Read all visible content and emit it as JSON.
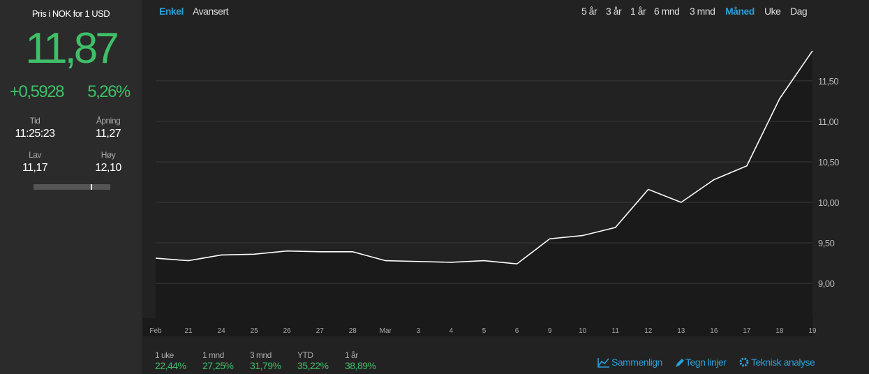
{
  "sidebar": {
    "title": "Pris i NOK for 1 USD",
    "price": "11,87",
    "change": "+0,5928",
    "change_pct": "5,26%",
    "stats": [
      {
        "label": "Tid",
        "value": "11:25:23"
      },
      {
        "label": "Åpning",
        "value": "11,27"
      },
      {
        "label": "Lav",
        "value": "11,17"
      },
      {
        "label": "Høy",
        "value": "12,10"
      }
    ]
  },
  "mode_tabs": {
    "items": [
      "Enkel",
      "Avansert"
    ],
    "active": 0
  },
  "range_tabs": {
    "items": [
      "5 år",
      "3 år",
      "1 år",
      "6 mnd",
      "3 mnd",
      "Måned",
      "Uke",
      "Dag"
    ],
    "active": 5
  },
  "chart_data": {
    "type": "area",
    "categories": [
      "Feb",
      "21",
      "24",
      "25",
      "26",
      "27",
      "28",
      "Mar",
      "3",
      "4",
      "5",
      "6",
      "9",
      "10",
      "11",
      "12",
      "13",
      "16",
      "17",
      "18",
      "19"
    ],
    "values": [
      9.31,
      9.28,
      9.35,
      9.36,
      9.4,
      9.39,
      9.39,
      9.28,
      9.27,
      9.26,
      9.28,
      9.24,
      9.55,
      9.59,
      9.69,
      10.16,
      10.0,
      10.28,
      10.45,
      11.28,
      11.87
    ],
    "color": "#ffffff",
    "ylim": [
      8.57,
      12.24
    ],
    "yticks": [
      {
        "value": 9.0,
        "label": "9,00"
      },
      {
        "value": 9.5,
        "label": "9,50"
      },
      {
        "value": 10.0,
        "label": "10,00"
      },
      {
        "value": 10.5,
        "label": "10,50"
      },
      {
        "value": 11.0,
        "label": "11,00"
      },
      {
        "value": 11.5,
        "label": "11,50"
      }
    ],
    "grid": true
  },
  "returns": [
    {
      "label": "1 uke",
      "value": "22,44%"
    },
    {
      "label": "1 mnd",
      "value": "27,25%"
    },
    {
      "label": "3 mnd",
      "value": "31,79%"
    },
    {
      "label": "YTD",
      "value": "35,22%"
    },
    {
      "label": "1 år",
      "value": "38,89%"
    }
  ],
  "links": [
    "Sammenlign",
    "Tegn linjer",
    "Teknisk analyse"
  ]
}
